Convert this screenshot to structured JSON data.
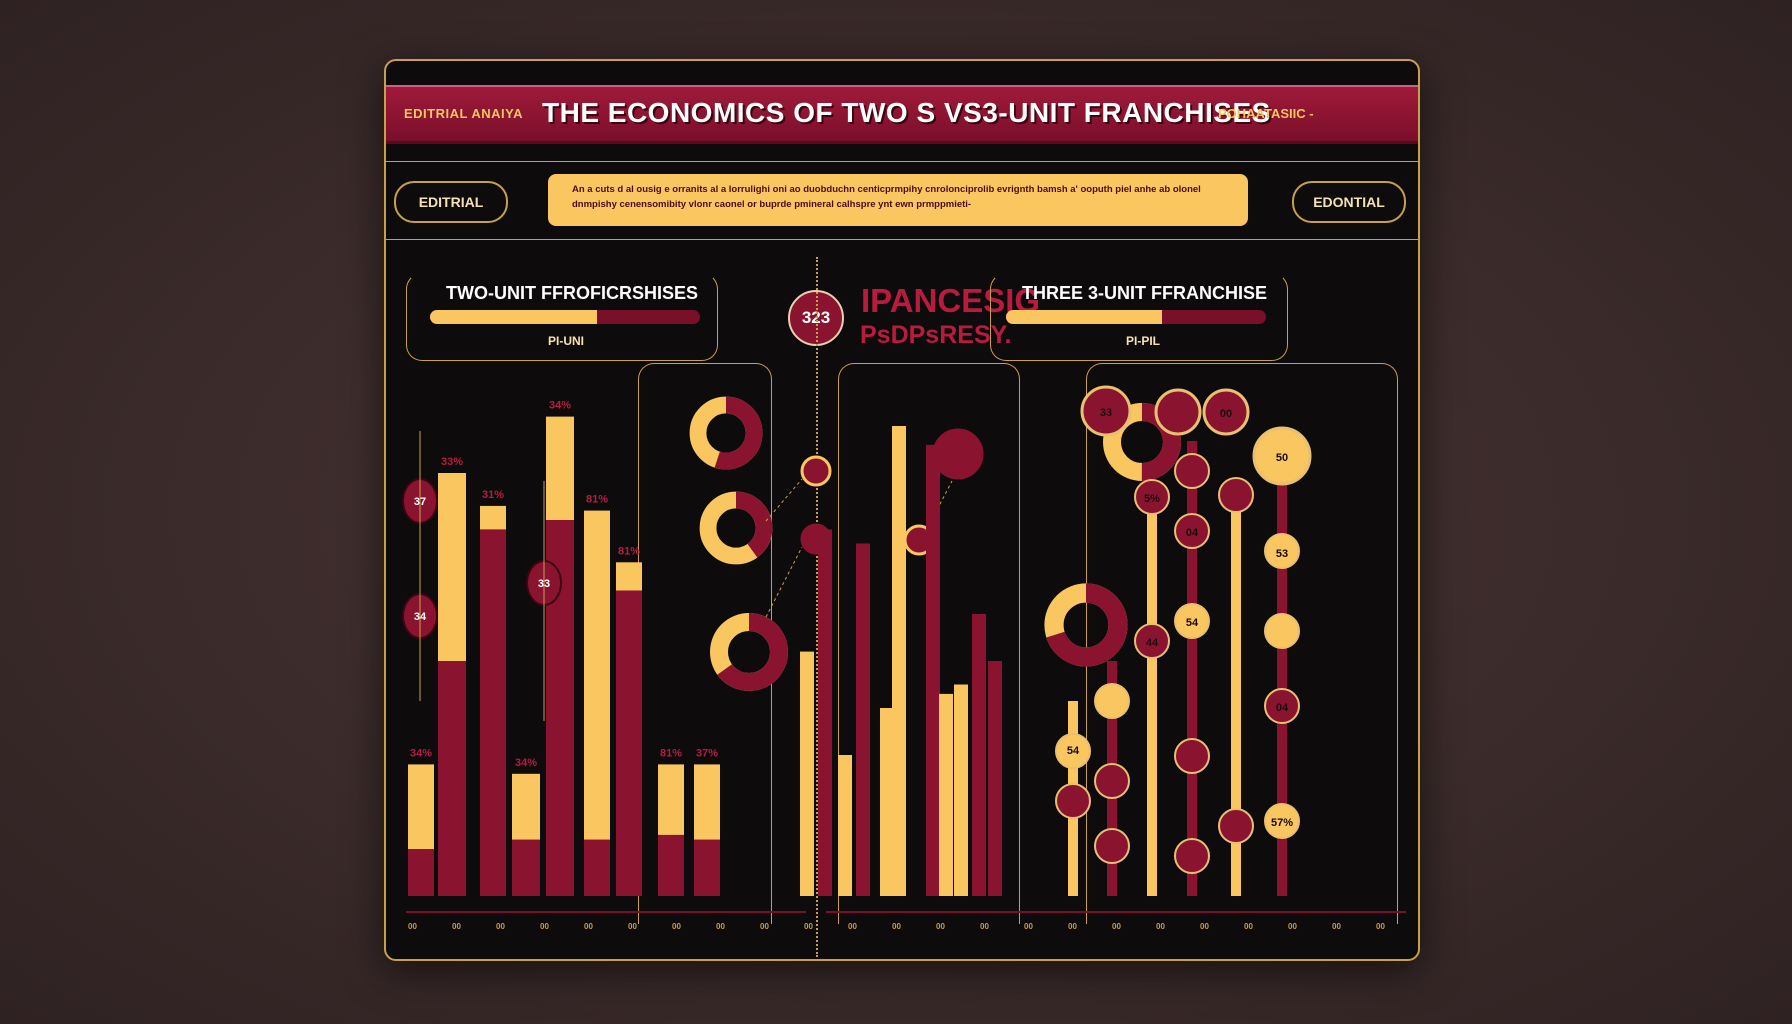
{
  "header": {
    "left_label": "EDITRIAL ANAIYA",
    "title": "THE ECONOMICS OF TWO S VS3-UNIT FRANCHISES",
    "dash": "–",
    "right_label": "POHAATASIIC -"
  },
  "tags": {
    "left": "EDITRIAL",
    "right": "EDONTIAL"
  },
  "banner_text": "An a cuts d al ousig e orranits al a lorrulighi oni ao duobduchn centicprmpihy cnrolonciprolib evrignth bamsh a' ooputh piel anhe ab olonel dnmpishy cenensomibity vlonr caonel or buprde pmineral calhspre ynt ewn prmppmieti-",
  "sections": {
    "left": {
      "title": "TWO-UNIT FFROFICRSHISES",
      "sub": "PI-UNI",
      "fill": 0.62
    },
    "middle": {
      "badge": "323",
      "title": "IPANCESIG",
      "sub": "PsDPsRESY."
    },
    "right": {
      "title": "THREE 3-UNIT FFRANCHISE",
      "sub": "PI-PIL",
      "fill": 0.6
    }
  },
  "colors": {
    "gold": "#f9c660",
    "maroon": "#8a1430",
    "crimson": "#b81b3e",
    "panel": "#0e0b0c",
    "rule": "#c9a04a"
  },
  "chart_data": [
    {
      "type": "bar",
      "title": "TWO-UNIT FFROFICRSHISES",
      "ylim": [
        0,
        100
      ],
      "bars": [
        {
          "gold": 18,
          "maroon": 10,
          "label": "34%"
        },
        {
          "gold": 40,
          "maroon": 50,
          "label": "33%"
        },
        {
          "gold": 5,
          "maroon": 78,
          "label": "31%"
        },
        {
          "gold": 14,
          "maroon": 12,
          "label": "34%"
        },
        {
          "gold": 22,
          "maroon": 80,
          "label": "34%"
        },
        {
          "gold": 70,
          "maroon": 12,
          "label": "81%"
        },
        {
          "gold": 6,
          "maroon": 65,
          "label": "81%"
        },
        {
          "gold": 15,
          "maroon": 13,
          "label": "81%"
        },
        {
          "gold": 16,
          "maroon": 12,
          "label": "37%"
        }
      ]
    },
    {
      "type": "bar",
      "title": "IPANCESIG",
      "ylim": [
        0,
        100
      ],
      "bars": [
        {
          "gold": 52,
          "maroon": 0
        },
        {
          "gold": 0,
          "maroon": 78
        },
        {
          "gold": 30,
          "maroon": 0
        },
        {
          "gold": 0,
          "maroon": 75
        },
        {
          "gold": 40,
          "maroon": 0
        },
        {
          "gold": 100,
          "maroon": 0
        },
        {
          "gold": 0,
          "maroon": 96
        },
        {
          "gold": 43,
          "maroon": 0
        },
        {
          "gold": 45,
          "maroon": 0
        },
        {
          "gold": 0,
          "maroon": 60
        },
        {
          "gold": 0,
          "maroon": 50
        }
      ]
    },
    {
      "type": "pie",
      "title": "donuts",
      "values": [
        [
          55,
          45
        ],
        [
          40,
          60
        ],
        [
          65,
          35
        ],
        [
          50,
          50
        ],
        [
          70,
          30
        ]
      ]
    },
    {
      "type": "scatter",
      "title": "THREE 3-UNIT FFRANCHISE",
      "series_labels": [
        "33",
        "00",
        "04",
        "54",
        "54",
        "5%",
        "50",
        "44",
        "53",
        "04",
        "57%"
      ]
    }
  ],
  "footnotes": {
    "marker_labels": [
      "37",
      "34",
      "33",
      "31",
      "00"
    ],
    "ticks": [
      "00",
      "00",
      "00",
      "00",
      "00",
      "00",
      "00",
      "00",
      "00",
      "00",
      "00",
      "00",
      "00",
      "00",
      "00",
      "00",
      "00",
      "00",
      "00",
      "00",
      "00",
      "00",
      "00"
    ]
  }
}
